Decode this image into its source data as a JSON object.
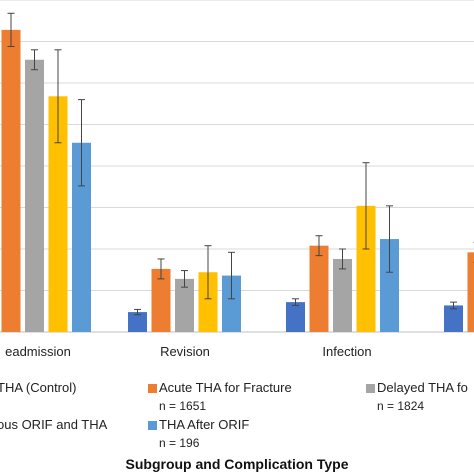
{
  "chart_data": {
    "type": "bar",
    "categories": [
      "Readmission",
      "Revision",
      "Infection",
      ""
    ],
    "category_labels": [
      "eadmission",
      "Revision",
      "Infection",
      ""
    ],
    "ylim": [
      0,
      100
    ],
    "grid": true,
    "legend_position": "bottom",
    "xlabel": "Subgroup and Complication Type",
    "series": [
      {
        "name": "THA (Control)",
        "legend_text": "THA (Control)",
        "n_text": "",
        "color": "#4472C4",
        "values": [
          null,
          6,
          9,
          8
        ],
        "errors": [
          null,
          0.8,
          1,
          1
        ]
      },
      {
        "name": "Acute THA for Fracture",
        "legend_text": "Acute THA for Fracture",
        "n_text": "n = 1651",
        "color": "#ED7D31",
        "values": [
          91,
          19,
          26,
          24
        ],
        "errors": [
          5,
          3,
          3,
          3
        ]
      },
      {
        "name": "Delayed THA for",
        "legend_text": "Delayed THA fo",
        "n_text": "n = 1824",
        "color": "#A5A5A5",
        "values": [
          82,
          16,
          22,
          null
        ],
        "errors": [
          3,
          2.5,
          3,
          null
        ]
      },
      {
        "name": "Simultaneous ORIF and THA",
        "legend_text": "ous ORIF and THA",
        "n_text": "",
        "color": "#FFC000",
        "values": [
          71,
          18,
          38,
          null
        ],
        "errors": [
          14,
          8,
          13,
          null
        ]
      },
      {
        "name": "THA After ORIF",
        "legend_text": "THA After ORIF",
        "n_text": "n = 196",
        "color": "#5B9BD5",
        "values": [
          57,
          17,
          28,
          null
        ],
        "errors": [
          13,
          7,
          10,
          null
        ]
      }
    ]
  }
}
